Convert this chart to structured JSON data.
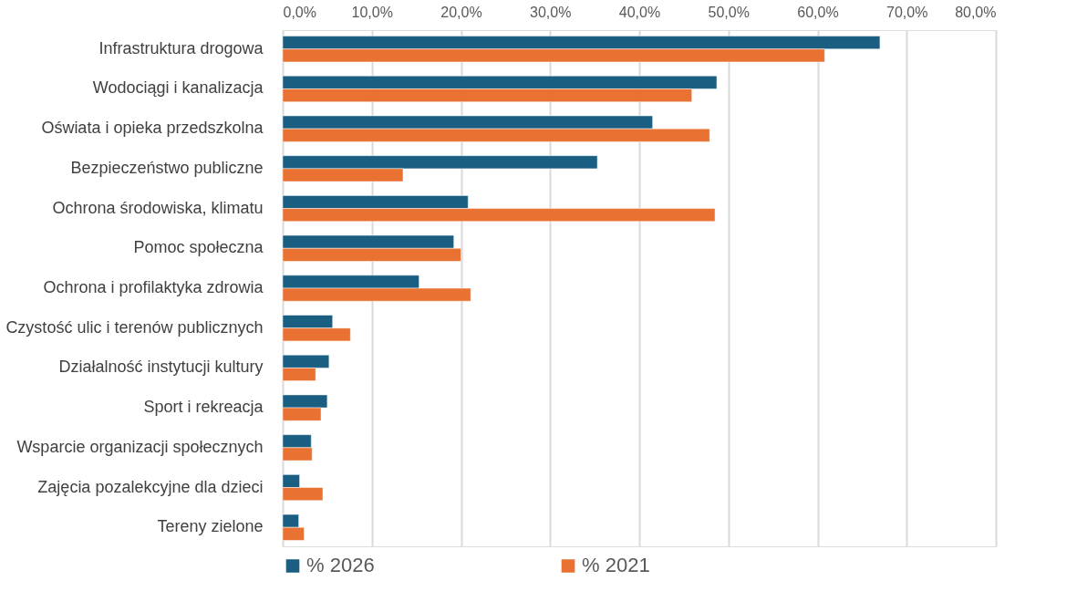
{
  "chart_data": {
    "type": "bar",
    "orientation": "horizontal",
    "categories": [
      "Infrastruktura drogowa",
      "Wodociągi i kanalizacja",
      "Oświata i opieka przedszkolna",
      "Bezpieczeństwo publiczne",
      "Ochrona środowiska, klimatu",
      "Pomoc społeczna",
      "Ochrona i profilaktyka zdrowia",
      "Czystość ulic i terenów publicznych",
      "Działalność instytucji kultury",
      "Sport i rekreacja",
      "Wsparcie organizacji społecznych",
      "Zajęcia pozalekcyjne dla dzieci",
      "Tereny zielone"
    ],
    "series": [
      {
        "name": "% 2026",
        "color": "#1a5f82",
        "values": [
          67.0,
          48.7,
          41.5,
          35.3,
          20.8,
          19.2,
          15.3,
          5.6,
          5.2,
          5.0,
          3.2,
          1.9,
          1.8
        ]
      },
      {
        "name": "% 2021",
        "color": "#e97132",
        "values": [
          60.8,
          45.9,
          47.9,
          13.5,
          48.5,
          20.0,
          21.1,
          7.6,
          3.7,
          4.3,
          3.3,
          4.5,
          2.4
        ]
      }
    ],
    "xlim": [
      0,
      80
    ],
    "xticks": [
      {
        "value": 0,
        "label": "0,0%"
      },
      {
        "value": 10,
        "label": "10,0%"
      },
      {
        "value": 20,
        "label": "20,0%"
      },
      {
        "value": 30,
        "label": "30,0%"
      },
      {
        "value": 40,
        "label": "40,0%"
      },
      {
        "value": 50,
        "label": "50,0%"
      },
      {
        "value": 60,
        "label": "60,0%"
      },
      {
        "value": 70,
        "label": "70,0%"
      },
      {
        "value": 80,
        "label": "80,0%"
      }
    ],
    "grid": "x",
    "legend": "bottom"
  }
}
